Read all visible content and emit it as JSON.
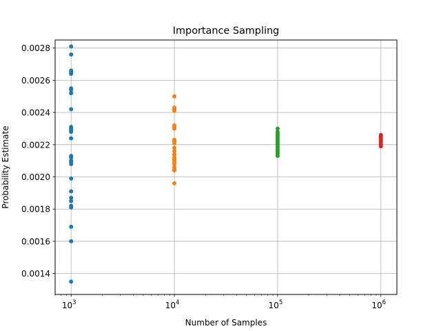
{
  "chart_data": {
    "type": "scatter",
    "title": "Importance Sampling",
    "xlabel": "Number of Samples",
    "ylabel": "Probability Estimate",
    "xscale": "log",
    "xlim": [
      700,
      1430000
    ],
    "ylim": [
      0.00127,
      0.00285
    ],
    "grid": true,
    "x_ticks": [
      {
        "value": 1000,
        "base": "10",
        "exp": "3"
      },
      {
        "value": 10000,
        "base": "10",
        "exp": "4"
      },
      {
        "value": 100000,
        "base": "10",
        "exp": "5"
      },
      {
        "value": 1000000,
        "base": "10",
        "exp": "6"
      }
    ],
    "y_ticks": [
      0.0014,
      0.0016,
      0.0018,
      0.002,
      0.0022,
      0.0024,
      0.0026,
      0.0028
    ],
    "y_tick_labels": [
      "0.0014",
      "0.0016",
      "0.0018",
      "0.0020",
      "0.0022",
      "0.0024",
      "0.0026",
      "0.0028"
    ],
    "series": [
      {
        "color": "#1f77b4",
        "x": 1000,
        "values": [
          0.00281,
          0.00276,
          0.00266,
          0.00265,
          0.00264,
          0.00255,
          0.00254,
          0.00252,
          0.00242,
          0.00231,
          0.0023,
          0.00229,
          0.00228,
          0.00224,
          0.00213,
          0.00212,
          0.0021,
          0.00209,
          0.00208,
          0.00199,
          0.00191,
          0.00187,
          0.00185,
          0.00182,
          0.00181,
          0.00169,
          0.0016,
          0.00135
        ]
      },
      {
        "color": "#ff7f0e",
        "x": 10000,
        "values": [
          0.0025,
          0.00243,
          0.00242,
          0.00241,
          0.00232,
          0.00231,
          0.0023,
          0.00223,
          0.00222,
          0.00221,
          0.00218,
          0.00216,
          0.00214,
          0.00212,
          0.00211,
          0.0021,
          0.00209,
          0.00208,
          0.00206,
          0.00205,
          0.00204,
          0.00196
        ]
      },
      {
        "color": "#2ca02c",
        "x": 100000,
        "values": [
          0.0023,
          0.00228,
          0.00227,
          0.00226,
          0.00225,
          0.00224,
          0.00223,
          0.00222,
          0.00221,
          0.0022,
          0.00219,
          0.00218,
          0.00217,
          0.00216,
          0.00215,
          0.00214,
          0.00213
        ]
      },
      {
        "color": "#d62728",
        "x": 1000000,
        "values": [
          0.00226,
          0.00225,
          0.00224,
          0.00223,
          0.00222,
          0.00221,
          0.0022,
          0.00219
        ]
      }
    ]
  }
}
